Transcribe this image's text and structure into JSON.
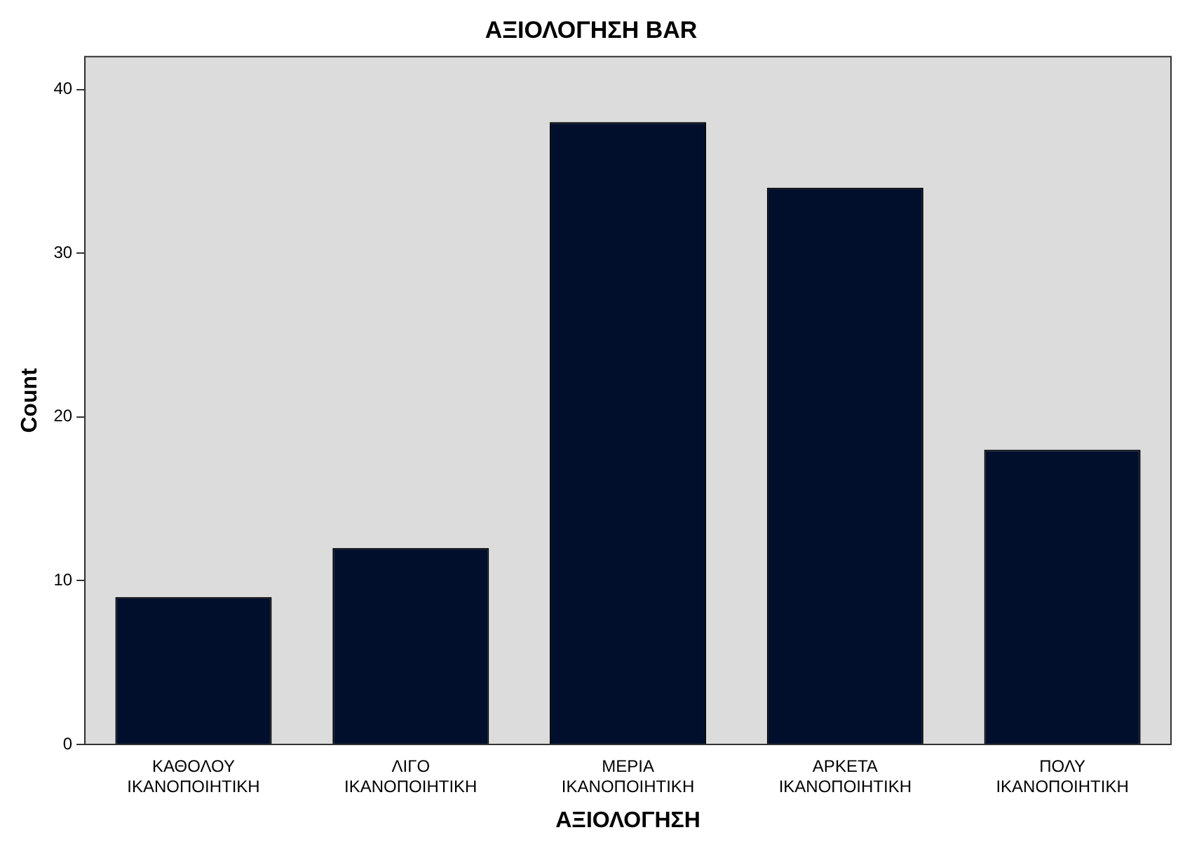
{
  "chart_data": {
    "type": "bar",
    "title": "ΑΞΙΟΛΟΓΗΣΗ BAR",
    "xlabel": "ΑΞΙΟΛΟΓΗΣΗ",
    "ylabel": "Count",
    "categories": [
      "ΚΑΘΟΛΟΥ ΙΚΑΝΟΠΟΙΗΤΙΚΗ",
      "ΛΙΓΟ ΙΚΑΝΟΠΟΙΗΤΙΚΗ",
      "ΜΕΡΙΑ ΙΚΑΝΟΠΟΙΗΤΙΚΗ",
      "ΑΡΚΕΤΑ ΙΚΑΝΟΠΟΙΗΤΙΚΗ",
      "ΠΟΛΥ ΙΚΑΝΟΠΟΙΗΤΙΚΗ"
    ],
    "values": [
      9,
      12,
      38,
      34,
      18
    ],
    "color": "#020f2c",
    "ylim": [
      0,
      42
    ],
    "yticks": [
      0,
      10,
      20,
      30,
      40
    ],
    "grid": false,
    "legend": false
  }
}
